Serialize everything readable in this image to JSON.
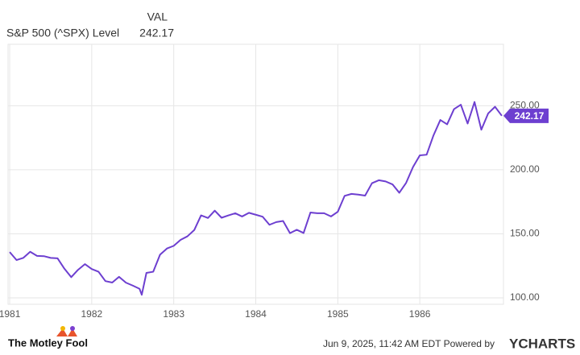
{
  "chart_data": {
    "type": "line",
    "value_header": "VAL",
    "x": [
      1981.0,
      1981.083,
      1981.167,
      1981.25,
      1981.333,
      1981.417,
      1981.5,
      1981.583,
      1981.667,
      1981.75,
      1981.833,
      1981.917,
      1982.0,
      1982.083,
      1982.167,
      1982.25,
      1982.333,
      1982.417,
      1982.5,
      1982.583,
      1982.61,
      1982.667,
      1982.75,
      1982.833,
      1982.917,
      1983.0,
      1983.083,
      1983.167,
      1983.25,
      1983.333,
      1983.417,
      1983.5,
      1983.583,
      1983.667,
      1983.75,
      1983.833,
      1983.917,
      1984.0,
      1984.083,
      1984.167,
      1984.25,
      1984.333,
      1984.417,
      1984.5,
      1984.583,
      1984.667,
      1984.75,
      1984.833,
      1984.917,
      1985.0,
      1985.083,
      1985.167,
      1985.25,
      1985.333,
      1985.417,
      1985.5,
      1985.583,
      1985.667,
      1985.75,
      1985.833,
      1985.917,
      1986.0,
      1986.083,
      1986.167,
      1986.25,
      1986.333,
      1986.417,
      1986.5,
      1986.583,
      1986.667,
      1986.75,
      1986.833,
      1986.917,
      1987.0
    ],
    "series": [
      {
        "name": "S&P 500 (^SPX) Level",
        "color": "#6d3fd0",
        "values": [
          135.76,
          129.55,
          131.27,
          136.0,
          132.81,
          132.59,
          131.21,
          130.92,
          122.79,
          116.18,
          121.89,
          126.35,
          122.55,
          120.4,
          113.11,
          111.96,
          116.44,
          111.88,
          109.61,
          107.09,
          102.42,
          119.51,
          120.42,
          133.71,
          138.54,
          140.64,
          145.3,
          148.06,
          152.96,
          164.42,
          162.39,
          168.11,
          162.56,
          164.4,
          166.07,
          163.55,
          166.4,
          164.93,
          163.41,
          157.06,
          159.18,
          160.05,
          150.55,
          153.18,
          150.66,
          166.68,
          166.1,
          166.09,
          163.58,
          167.24,
          179.63,
          181.18,
          180.66,
          179.83,
          189.55,
          191.85,
          190.92,
          188.63,
          182.08,
          189.82,
          202.17,
          211.28,
          211.78,
          226.92,
          238.9,
          235.52,
          247.35,
          250.84,
          236.12,
          252.93,
          231.32,
          243.98,
          249.22,
          242.17
        ]
      }
    ],
    "xlim": [
      1980.98,
      1987.02
    ],
    "xticks": [
      1981,
      1982,
      1983,
      1984,
      1985,
      1986
    ],
    "ylim": [
      95,
      298
    ],
    "yticks": [
      {
        "value": 100,
        "label": "100.00"
      },
      {
        "value": 150,
        "label": "150.00"
      },
      {
        "value": 200,
        "label": "200.00"
      },
      {
        "value": 250,
        "label": "250.00"
      }
    ],
    "grid": true
  },
  "footer": {
    "brand": "The Motley Fool",
    "timestamp": "Jun 9, 2025, 11:42 AM EDT Powered by",
    "provider": "YCHARTS"
  }
}
